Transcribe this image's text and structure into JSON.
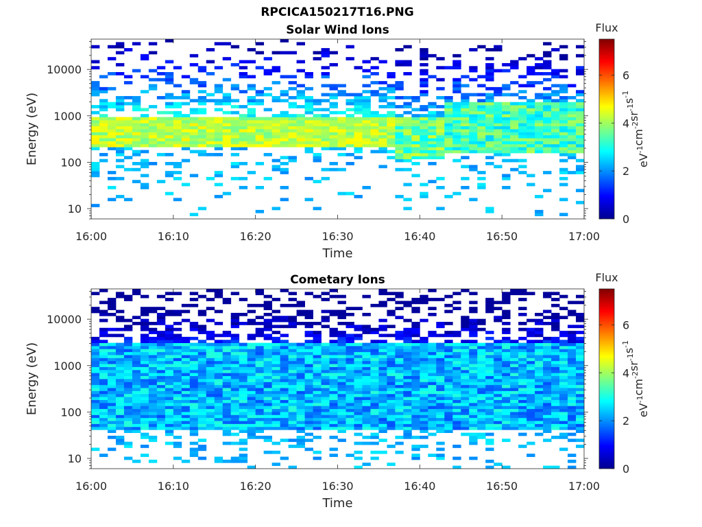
{
  "figure": {
    "title": "RPCICA150217T16.PNG"
  },
  "colors": {
    "colormap": [
      "#00008f",
      "#0000ff",
      "#0080ff",
      "#00ffff",
      "#80ff80",
      "#ffff00",
      "#ff8000",
      "#ff0000",
      "#800000"
    ],
    "axis": "#262626"
  },
  "chart_data": [
    {
      "type": "heatmap",
      "title": "Solar Wind Ions",
      "xlabel": "Time",
      "ylabel": "Energy (eV)",
      "x_tick_labels": [
        "16:00",
        "16:10",
        "16:20",
        "16:30",
        "16:40",
        "16:50",
        "17:00"
      ],
      "x_range": [
        "16:00",
        "17:00"
      ],
      "y_scale": "log",
      "y_range": [
        6,
        45000
      ],
      "y_tick_values": [
        10,
        100,
        1000,
        10000
      ],
      "y_tick_labels": [
        "10",
        "100",
        "1000",
        "10000"
      ],
      "colorbar": {
        "label": "Flux",
        "units": "eV-1cm-2sr-1s-1",
        "range": [
          0,
          7.5
        ],
        "tick_labels": [
          "0",
          "2",
          "4",
          "6"
        ]
      },
      "time_bins_min": 60,
      "core_band": {
        "energy_low_eV": 200,
        "energy_high_eV": 900,
        "typical_flux": 4.2,
        "peak_flux": 4.8
      },
      "features": [
        {
          "time": "16:37-16:43",
          "energy_low_eV": 120,
          "energy_high_eV": 1000,
          "flux": 3.6
        },
        {
          "time": "16:43-17:00",
          "energy_low_eV": 150,
          "energy_high_eV": 2000,
          "flux": 3.3
        }
      ]
    },
    {
      "type": "heatmap",
      "title": "Cometary Ions",
      "xlabel": "Time",
      "ylabel": "Energy (eV)",
      "x_tick_labels": [
        "16:00",
        "16:10",
        "16:20",
        "16:30",
        "16:40",
        "16:50",
        "17:00"
      ],
      "x_range": [
        "16:00",
        "17:00"
      ],
      "y_scale": "log",
      "y_range": [
        6,
        45000
      ],
      "y_tick_values": [
        10,
        100,
        1000,
        10000
      ],
      "y_tick_labels": [
        "10",
        "100",
        "1000",
        "10000"
      ],
      "colorbar": {
        "label": "Flux",
        "units": "eV-1cm-2sr-1s-1",
        "range": [
          0,
          7.5
        ],
        "tick_labels": [
          "0",
          "2",
          "4",
          "6"
        ]
      },
      "time_bins_min": 60,
      "core_band": {
        "energy_low_eV": 200,
        "energy_high_eV": 700,
        "typical_flux": 3.4,
        "peak_flux": 3.9
      },
      "features": [
        {
          "time": "16:00-17:00",
          "energy_low_eV": 40,
          "energy_high_eV": 3000,
          "flux": 2.3
        }
      ]
    }
  ]
}
